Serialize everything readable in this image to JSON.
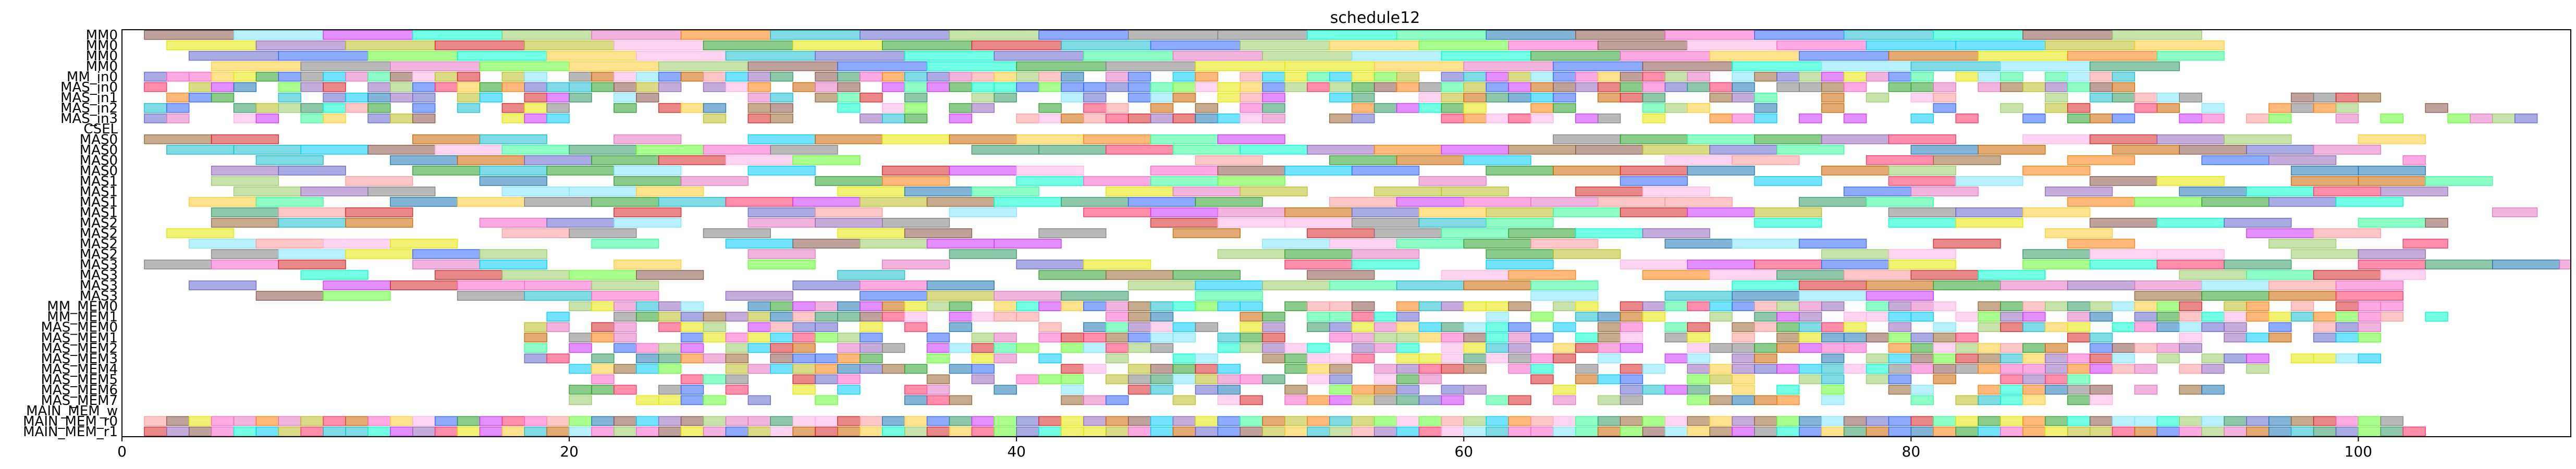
{
  "chart_data": {
    "type": "gantt",
    "title": "schedule12",
    "xlabel": "",
    "ylabel": "",
    "xlim": [
      0,
      109.5
    ],
    "x_ticks": [
      0,
      20,
      40,
      60,
      80,
      100
    ],
    "x_tick_labels": [
      "0",
      "20",
      "40",
      "60",
      "80",
      "100"
    ],
    "grid": false,
    "legend": "none",
    "bar_alpha": 0.55,
    "palette": [
      "#2ca02c",
      "#ff3366",
      "#9467bd",
      "#e6e600",
      "#1f77b4",
      "#ff7f0e",
      "#17becf",
      "#d62728",
      "#8c564b",
      "#e377c2",
      "#7f7f7f",
      "#bcbd22",
      "#33ff99",
      "#3366ff",
      "#ff66cc",
      "#66ff33",
      "#996633",
      "#00ccff",
      "#cc33ff",
      "#ffcc33",
      "#339966",
      "#ff9999",
      "#6666cc",
      "#99cc66",
      "#00ffcc",
      "#cc6600",
      "#ffb3e6",
      "#80e5ff"
    ],
    "lanes": [
      {
        "label": "MM0",
        "active": [
          1,
          93
        ],
        "period": 4.0,
        "gap": 0.0
      },
      {
        "label": "MM0",
        "active": [
          2,
          94
        ],
        "period": 4.0,
        "gap": 0.0
      },
      {
        "label": "MM0",
        "active": [
          3,
          94
        ],
        "period": 4.0,
        "gap": 0.0
      },
      {
        "label": "MM0",
        "active": [
          4,
          92
        ],
        "period": 4.0,
        "gap": 0.0
      },
      {
        "label": "MM_in0",
        "active": [
          1,
          90
        ],
        "period": 1.0,
        "gap": 0.1
      },
      {
        "label": "MAS_in0",
        "active": [
          1,
          90
        ],
        "period": 1.0,
        "gap": 0.1
      },
      {
        "label": "MAS_in1",
        "active": [
          1,
          101
        ],
        "period": 1.0,
        "gap": 0.4
      },
      {
        "label": "MAS_in2",
        "active": [
          1,
          104
        ],
        "period": 1.0,
        "gap": 0.45
      },
      {
        "label": "MAS_in3",
        "active": [
          1,
          108
        ],
        "period": 1.0,
        "gap": 0.5
      },
      {
        "label": "CSEL",
        "active": [
          20,
          20
        ],
        "period": 1.0,
        "gap": 0.0
      },
      {
        "label": "MAS0",
        "active": [
          1,
          105
        ],
        "period": 3.0,
        "gap": 0.35
      },
      {
        "label": "MAS0",
        "active": [
          2,
          104
        ],
        "period": 3.0,
        "gap": 0.2
      },
      {
        "label": "MAS0",
        "active": [
          3,
          103
        ],
        "period": 3.0,
        "gap": 0.3
      },
      {
        "label": "MAS0",
        "active": [
          4,
          104
        ],
        "period": 3.0,
        "gap": 0.4
      },
      {
        "label": "MAS1",
        "active": [
          1,
          108
        ],
        "period": 3.0,
        "gap": 0.3
      },
      {
        "label": "MAS1",
        "active": [
          2,
          107
        ],
        "period": 3.0,
        "gap": 0.35
      },
      {
        "label": "MAS1",
        "active": [
          3,
          106
        ],
        "period": 3.0,
        "gap": 0.3
      },
      {
        "label": "MAS1",
        "active": [
          4,
          108
        ],
        "period": 3.0,
        "gap": 0.35
      },
      {
        "label": "MAS2",
        "active": [
          1,
          104
        ],
        "period": 3.0,
        "gap": 0.3
      },
      {
        "label": "MAS2",
        "active": [
          2,
          102
        ],
        "period": 3.0,
        "gap": 0.35
      },
      {
        "label": "MAS2",
        "active": [
          3,
          104
        ],
        "period": 3.0,
        "gap": 0.3
      },
      {
        "label": "MAS2",
        "active": [
          4,
          105
        ],
        "period": 3.0,
        "gap": 0.4
      },
      {
        "label": "MAS3",
        "active": [
          1,
          109.5
        ],
        "period": 3.0,
        "gap": 0.35
      },
      {
        "label": "MAS3",
        "active": [
          2,
          103
        ],
        "period": 3.0,
        "gap": 0.35
      },
      {
        "label": "MAS3",
        "active": [
          3,
          104
        ],
        "period": 3.0,
        "gap": 0.3
      },
      {
        "label": "MAS3",
        "active": [
          3,
          105
        ],
        "period": 3.0,
        "gap": 0.4
      },
      {
        "label": "MM_MEM0",
        "active": [
          19,
          104
        ],
        "period": 1.0,
        "gap": 0.15
      },
      {
        "label": "MM_MEM1",
        "active": [
          19,
          104
        ],
        "period": 1.0,
        "gap": 0.3
      },
      {
        "label": "MAS_MEM0",
        "active": [
          18,
          101
        ],
        "period": 1.0,
        "gap": 0.3
      },
      {
        "label": "MAS_MEM1",
        "active": [
          18,
          101
        ],
        "period": 1.0,
        "gap": 0.35
      },
      {
        "label": "MAS_MEM2",
        "active": [
          18,
          93
        ],
        "period": 1.0,
        "gap": 0.3
      },
      {
        "label": "MAS_MEM3",
        "active": [
          18,
          101
        ],
        "period": 1.0,
        "gap": 0.35
      },
      {
        "label": "MAS_MEM4",
        "active": [
          19,
          96
        ],
        "period": 1.0,
        "gap": 0.35
      },
      {
        "label": "MAS_MEM5",
        "active": [
          19,
          88
        ],
        "period": 1.0,
        "gap": 0.35
      },
      {
        "label": "MAS_MEM6",
        "active": [
          20,
          96
        ],
        "period": 1.0,
        "gap": 0.35
      },
      {
        "label": "MAS_MEM7",
        "active": [
          20,
          90
        ],
        "period": 1.0,
        "gap": 0.35
      },
      {
        "label": "MAIN_MEM_w",
        "active": [
          20,
          20
        ],
        "period": 1.0,
        "gap": 0.0
      },
      {
        "label": "MAIN_MEM_r0",
        "active": [
          1,
          102
        ],
        "period": 1.0,
        "gap": 0.0
      },
      {
        "label": "MAIN_MEM_r1",
        "active": [
          1,
          103
        ],
        "period": 1.0,
        "gap": 0.0
      }
    ]
  }
}
